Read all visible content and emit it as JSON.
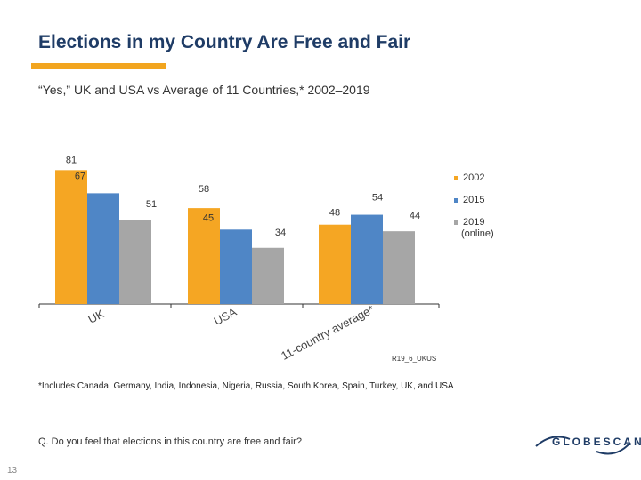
{
  "header": {
    "title": "Elections in my Country Are Free and Fair",
    "subtitle": "“Yes,” UK and USA vs Average of 11 Countries,* 2002–2019"
  },
  "colors": {
    "accent": "#f2a51f",
    "title": "#1f3c66",
    "series_2002": "#f5a623",
    "series_2015": "#4f86c6",
    "series_2019": "#a6a6a6"
  },
  "chart_data": {
    "type": "bar",
    "categories": [
      "UK",
      "USA",
      "11-country average*"
    ],
    "series": [
      {
        "name": "2002",
        "values": [
          81,
          58,
          48
        ]
      },
      {
        "name": "2015",
        "values": [
          67,
          45,
          54
        ]
      },
      {
        "name": "2019 (online)",
        "values": [
          51,
          34,
          44
        ]
      }
    ],
    "legend": [
      "2002",
      "2015",
      "2019",
      "(online)"
    ],
    "ylim": [
      0,
      100
    ],
    "source_code": "R19_6_UKUS"
  },
  "footnote": "*Includes Canada, Germany, India, Indonesia, Nigeria, Russia, South Korea, Spain, Turkey, UK, and USA",
  "question": "Q. Do you feel that elections in this country are free and fair?",
  "page_number": "13",
  "logo_text": "GLOBESCAN"
}
